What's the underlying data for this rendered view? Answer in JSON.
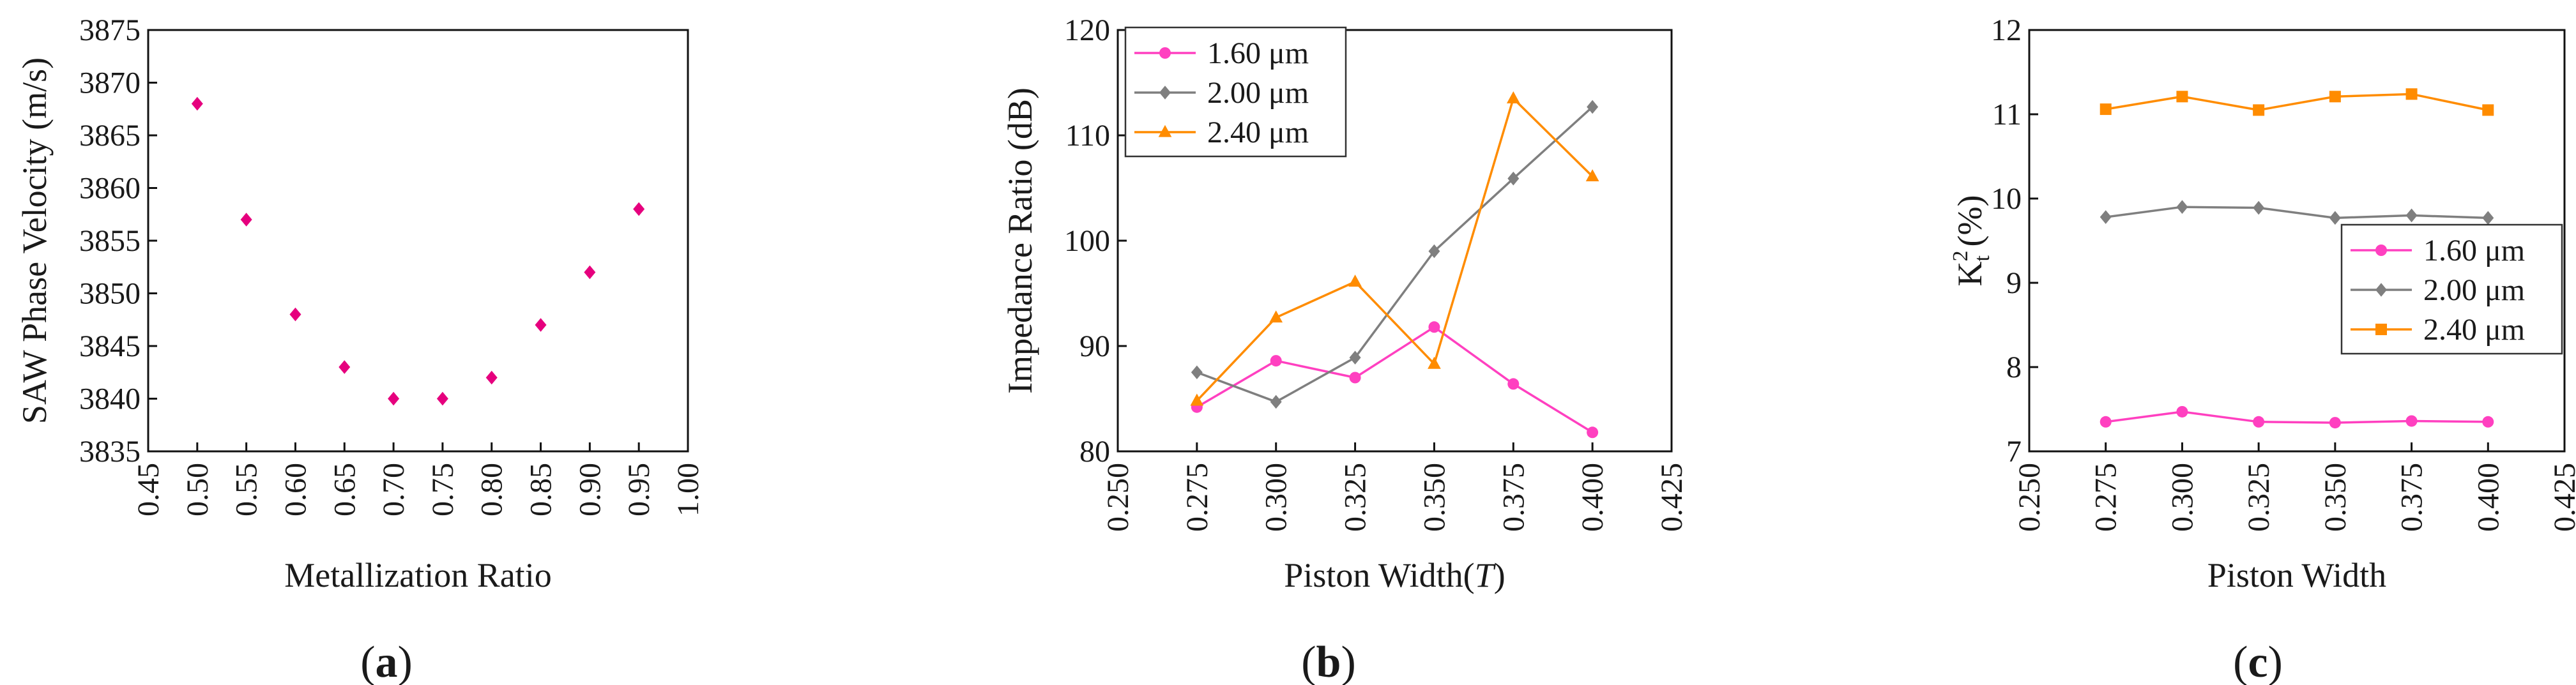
{
  "chart_data": [
    {
      "type": "scatter",
      "panel_label": "(a)",
      "panel_letter": "a",
      "xlabel": "Metallization Ratio",
      "ylabel": "SAW Phase Velocity (m/s)",
      "xlim": [
        0.45,
        1.0
      ],
      "ylim": [
        3835,
        3875
      ],
      "xticks": [
        "0.45",
        "0.50",
        "0.55",
        "0.60",
        "0.65",
        "0.70",
        "0.75",
        "0.80",
        "0.85",
        "0.90",
        "0.95",
        "1.00"
      ],
      "yticks": [
        "3835",
        "3840",
        "3845",
        "3850",
        "3855",
        "3860",
        "3865",
        "3870",
        "3875"
      ],
      "series": [
        {
          "name": "SAW Phase Velocity",
          "color": "#e6007e",
          "marker": "diamond",
          "x": [
            0.5,
            0.55,
            0.6,
            0.65,
            0.7,
            0.75,
            0.8,
            0.85,
            0.9,
            0.95
          ],
          "y": [
            3868,
            3857,
            3848,
            3843,
            3840,
            3840,
            3842,
            3847,
            3852,
            3858
          ]
        }
      ]
    },
    {
      "type": "line",
      "panel_label": "(b)",
      "panel_letter": "b",
      "xlabel_main": "Piston Width(",
      "xlabel_italic": "T",
      "xlabel_end": ")",
      "ylabel": "Impedance Ratio (dB)",
      "xlim": [
        0.25,
        0.425
      ],
      "ylim": [
        80,
        120
      ],
      "xticks": [
        "0.250",
        "0.275",
        "0.300",
        "0.325",
        "0.350",
        "0.375",
        "0.400",
        "0.425"
      ],
      "yticks": [
        "80",
        "90",
        "100",
        "110",
        "120"
      ],
      "legend_position": "top-left",
      "series": [
        {
          "name": "1.60 μm",
          "color": "#ff40c0",
          "marker": "circle",
          "x": [
            0.275,
            0.3,
            0.325,
            0.35,
            0.375,
            0.4
          ],
          "y": [
            84.2,
            88.6,
            87.0,
            91.8,
            86.4,
            81.8
          ]
        },
        {
          "name": "2.00 μm",
          "color": "#7f7f7f",
          "marker": "diamond",
          "x": [
            0.275,
            0.3,
            0.325,
            0.35,
            0.375,
            0.4
          ],
          "y": [
            87.5,
            84.7,
            88.9,
            99.0,
            105.9,
            112.7
          ]
        },
        {
          "name": "2.40 μm",
          "color": "#ff8c00",
          "marker": "triangle",
          "x": [
            0.275,
            0.3,
            0.325,
            0.35,
            0.375,
            0.4
          ],
          "y": [
            84.8,
            92.7,
            96.1,
            88.3,
            113.5,
            106.1
          ]
        }
      ]
    },
    {
      "type": "line",
      "panel_label": "(c)",
      "panel_letter": "c",
      "xlabel": "Piston Width",
      "ylabel_main": "K",
      "ylabel_sup": "2",
      "ylabel_sub": "t",
      "ylabel_end": " (%)",
      "xlim": [
        0.25,
        0.425
      ],
      "ylim": [
        7,
        12
      ],
      "xticks": [
        "0.250",
        "0.275",
        "0.300",
        "0.325",
        "0.350",
        "0.375",
        "0.400",
        "0.425"
      ],
      "yticks": [
        "7",
        "8",
        "9",
        "10",
        "11",
        "12"
      ],
      "legend_position": "right-center",
      "series": [
        {
          "name": "1.60 μm",
          "color": "#ff40c0",
          "marker": "circle",
          "x": [
            0.275,
            0.3,
            0.325,
            0.35,
            0.375,
            0.4
          ],
          "y": [
            7.35,
            7.47,
            7.35,
            7.34,
            7.36,
            7.35
          ]
        },
        {
          "name": "2.00 μm",
          "color": "#7f7f7f",
          "marker": "diamond",
          "x": [
            0.275,
            0.3,
            0.325,
            0.35,
            0.375,
            0.4
          ],
          "y": [
            9.78,
            9.9,
            9.89,
            9.77,
            9.8,
            9.77
          ]
        },
        {
          "name": "2.40 μm",
          "color": "#ff8c00",
          "marker": "square",
          "x": [
            0.275,
            0.3,
            0.325,
            0.35,
            0.375,
            0.4
          ],
          "y": [
            11.06,
            11.21,
            11.05,
            11.21,
            11.24,
            11.05
          ]
        }
      ]
    }
  ]
}
